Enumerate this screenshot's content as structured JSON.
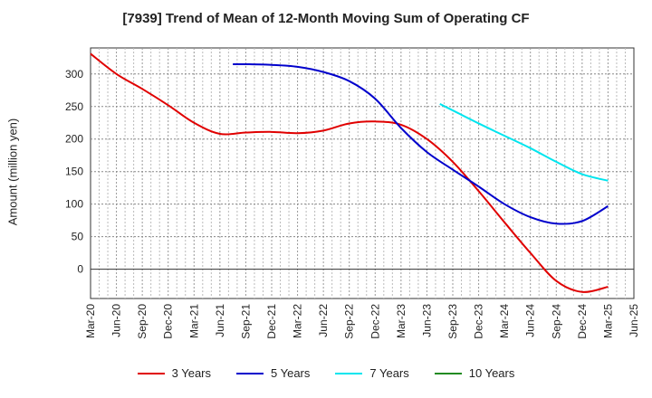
{
  "chart_data": {
    "type": "line",
    "title": "[7939]  Trend of Mean of 12-Month Moving Sum of Operating CF",
    "xlabel": "",
    "ylabel": "Amount (million yen)",
    "ylim": [
      -45,
      340
    ],
    "yticks": [
      0,
      50,
      100,
      150,
      200,
      250,
      300
    ],
    "categories": [
      "Mar-20",
      "Jun-20",
      "Sep-20",
      "Dec-20",
      "Mar-21",
      "Jun-21",
      "Sep-21",
      "Dec-21",
      "Mar-22",
      "Jun-22",
      "Sep-22",
      "Dec-22",
      "Mar-23",
      "Jun-23",
      "Sep-23",
      "Dec-23",
      "Mar-24",
      "Jun-24",
      "Sep-24",
      "Dec-24",
      "Mar-25",
      "Jun-25"
    ],
    "series": [
      {
        "name": "3 Years",
        "color": "#e00000",
        "points": [
          [
            0,
            331
          ],
          [
            1,
            300
          ],
          [
            2,
            277
          ],
          [
            3,
            252
          ],
          [
            4,
            225
          ],
          [
            5,
            208
          ],
          [
            6,
            210
          ],
          [
            7,
            211
          ],
          [
            8,
            209
          ],
          [
            9,
            213
          ],
          [
            10,
            224
          ],
          [
            11,
            227
          ],
          [
            12,
            222
          ],
          [
            13,
            200
          ],
          [
            14,
            165
          ],
          [
            15,
            120
          ],
          [
            16,
            72
          ],
          [
            17,
            25
          ],
          [
            18,
            -18
          ],
          [
            19,
            -35
          ],
          [
            20,
            -27
          ]
        ]
      },
      {
        "name": "5 Years",
        "color": "#0000cc",
        "points": [
          [
            5.5,
            315
          ],
          [
            6,
            315
          ],
          [
            7,
            314
          ],
          [
            8,
            311
          ],
          [
            9,
            303
          ],
          [
            10,
            289
          ],
          [
            11,
            262
          ],
          [
            12,
            217
          ],
          [
            13,
            180
          ],
          [
            14,
            153
          ],
          [
            15,
            127
          ],
          [
            16,
            100
          ],
          [
            17,
            80
          ],
          [
            18,
            70
          ],
          [
            19,
            74
          ],
          [
            20,
            97
          ]
        ]
      },
      {
        "name": "7 Years",
        "color": "#00e5ee",
        "points": [
          [
            13.5,
            254
          ],
          [
            14,
            244
          ],
          [
            15,
            224
          ],
          [
            16,
            205
          ],
          [
            17,
            186
          ],
          [
            18,
            165
          ],
          [
            19,
            146
          ],
          [
            20,
            136
          ]
        ]
      },
      {
        "name": "10 Years",
        "color": "#228b22",
        "points": []
      }
    ]
  }
}
